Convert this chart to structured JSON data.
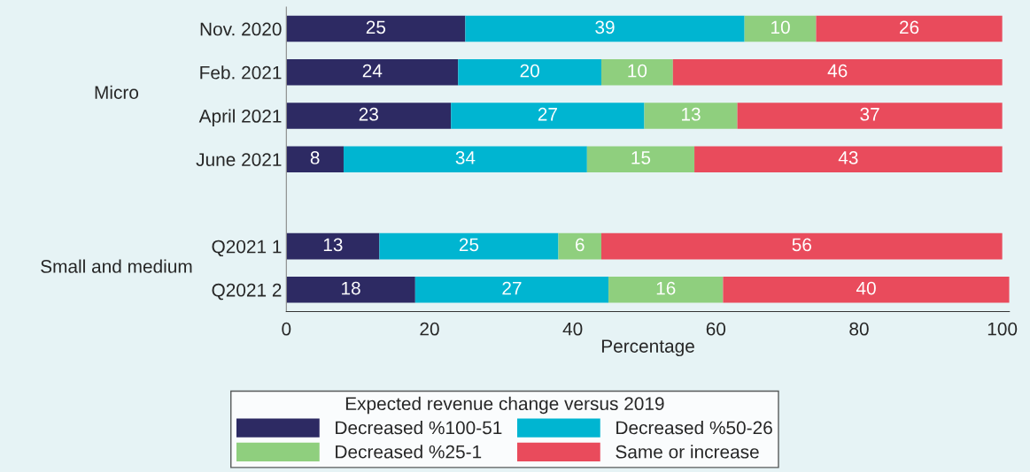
{
  "chart_data": {
    "type": "bar",
    "orientation": "horizontal",
    "stacked": true,
    "data_labels": true,
    "categories": [
      "Nov. 2020",
      "Feb. 2021",
      "April 2021",
      "June 2021",
      null,
      "Q2021 1",
      "Q2021 2"
    ],
    "series": [
      {
        "name": "Decreased %100-51",
        "color": "#2d2a63",
        "values": [
          25,
          24,
          23,
          8,
          null,
          13,
          18
        ]
      },
      {
        "name": "Decreased %50-26",
        "color": "#00b5d1",
        "values": [
          39,
          20,
          27,
          34,
          null,
          25,
          27
        ]
      },
      {
        "name": "Decreased %25-1",
        "color": "#8fcf7e",
        "values": [
          10,
          10,
          13,
          15,
          null,
          6,
          16
        ]
      },
      {
        "name": "Same or increase",
        "color": "#e94b5c",
        "values": [
          26,
          46,
          37,
          43,
          null,
          56,
          40
        ]
      }
    ],
    "xlabel": "Percentage",
    "legend_title": "Expected revenue change versus 2019",
    "xlim": [
      0,
      101
    ],
    "xticks": [
      0,
      20,
      40,
      60,
      80,
      100
    ],
    "annotations": [
      "Micro",
      "Small and medium"
    ],
    "legend": "bottom",
    "grid": false
  }
}
